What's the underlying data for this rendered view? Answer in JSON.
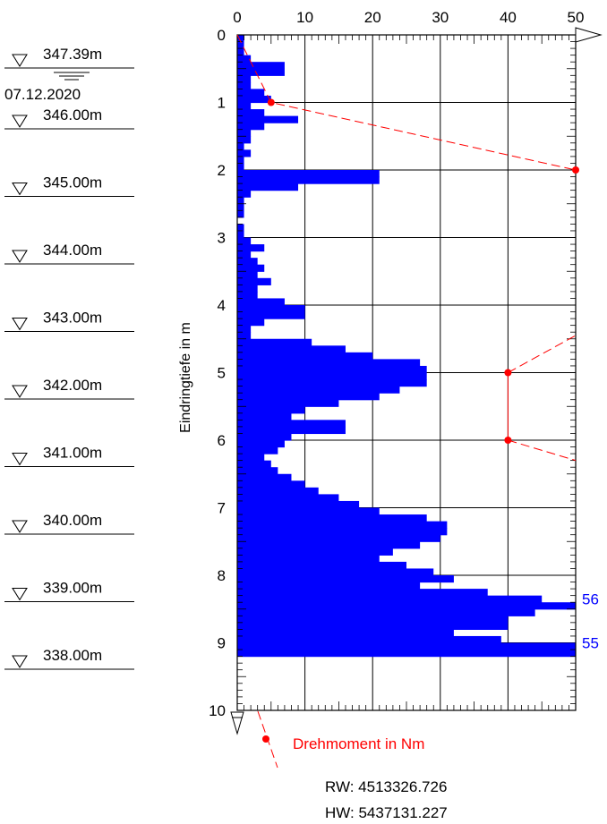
{
  "chart_data": {
    "type": "bar",
    "orientation": "horizontal",
    "xlabel": "",
    "ylabel": "Eindringtiefe in m",
    "xlim": [
      0,
      50
    ],
    "ylim": [
      10,
      0
    ],
    "x_ticks": [
      "0",
      "10",
      "20",
      "30",
      "40",
      "50"
    ],
    "y_ticks": [
      "0",
      "1",
      "2",
      "3",
      "4",
      "5",
      "6",
      "7",
      "8",
      "9",
      "10"
    ],
    "grid": true,
    "bar_color": "#0000ff",
    "bar_step_m": 0.1,
    "bars": [
      {
        "depth": 0.0,
        "value": 1
      },
      {
        "depth": 0.1,
        "value": 1
      },
      {
        "depth": 0.2,
        "value": 1
      },
      {
        "depth": 0.3,
        "value": 2
      },
      {
        "depth": 0.4,
        "value": 7
      },
      {
        "depth": 0.5,
        "value": 7
      },
      {
        "depth": 0.6,
        "value": 2
      },
      {
        "depth": 0.7,
        "value": 2
      },
      {
        "depth": 0.8,
        "value": 4
      },
      {
        "depth": 0.9,
        "value": 5
      },
      {
        "depth": 1.0,
        "value": 2
      },
      {
        "depth": 1.1,
        "value": 4
      },
      {
        "depth": 1.2,
        "value": 9
      },
      {
        "depth": 1.3,
        "value": 4
      },
      {
        "depth": 1.4,
        "value": 2
      },
      {
        "depth": 1.5,
        "value": 2
      },
      {
        "depth": 1.6,
        "value": 1
      },
      {
        "depth": 1.7,
        "value": 2
      },
      {
        "depth": 1.8,
        "value": 1
      },
      {
        "depth": 1.9,
        "value": 1
      },
      {
        "depth": 2.0,
        "value": 21
      },
      {
        "depth": 2.1,
        "value": 21
      },
      {
        "depth": 2.2,
        "value": 9
      },
      {
        "depth": 2.3,
        "value": 2
      },
      {
        "depth": 2.4,
        "value": 1
      },
      {
        "depth": 2.5,
        "value": 1
      },
      {
        "depth": 2.6,
        "value": 1
      },
      {
        "depth": 2.7,
        "value": 0
      },
      {
        "depth": 2.8,
        "value": 1
      },
      {
        "depth": 2.9,
        "value": 1
      },
      {
        "depth": 3.0,
        "value": 2
      },
      {
        "depth": 3.1,
        "value": 4
      },
      {
        "depth": 3.2,
        "value": 2
      },
      {
        "depth": 3.3,
        "value": 3
      },
      {
        "depth": 3.4,
        "value": 4
      },
      {
        "depth": 3.5,
        "value": 3
      },
      {
        "depth": 3.6,
        "value": 5
      },
      {
        "depth": 3.7,
        "value": 3
      },
      {
        "depth": 3.8,
        "value": 3
      },
      {
        "depth": 3.9,
        "value": 7
      },
      {
        "depth": 4.0,
        "value": 10
      },
      {
        "depth": 4.1,
        "value": 10
      },
      {
        "depth": 4.2,
        "value": 4
      },
      {
        "depth": 4.3,
        "value": 2
      },
      {
        "depth": 4.4,
        "value": 2
      },
      {
        "depth": 4.5,
        "value": 11
      },
      {
        "depth": 4.6,
        "value": 16
      },
      {
        "depth": 4.7,
        "value": 20
      },
      {
        "depth": 4.8,
        "value": 27
      },
      {
        "depth": 4.9,
        "value": 28
      },
      {
        "depth": 5.0,
        "value": 28
      },
      {
        "depth": 5.1,
        "value": 28
      },
      {
        "depth": 5.2,
        "value": 24
      },
      {
        "depth": 5.3,
        "value": 21
      },
      {
        "depth": 5.4,
        "value": 15
      },
      {
        "depth": 5.5,
        "value": 10
      },
      {
        "depth": 5.6,
        "value": 8
      },
      {
        "depth": 5.7,
        "value": 16
      },
      {
        "depth": 5.8,
        "value": 16
      },
      {
        "depth": 5.9,
        "value": 8
      },
      {
        "depth": 6.0,
        "value": 7
      },
      {
        "depth": 6.1,
        "value": 6
      },
      {
        "depth": 6.2,
        "value": 4
      },
      {
        "depth": 6.3,
        "value": 5
      },
      {
        "depth": 6.4,
        "value": 6
      },
      {
        "depth": 6.5,
        "value": 8
      },
      {
        "depth": 6.6,
        "value": 10
      },
      {
        "depth": 6.7,
        "value": 12
      },
      {
        "depth": 6.8,
        "value": 15
      },
      {
        "depth": 6.9,
        "value": 18
      },
      {
        "depth": 7.0,
        "value": 21
      },
      {
        "depth": 7.1,
        "value": 28
      },
      {
        "depth": 7.2,
        "value": 31
      },
      {
        "depth": 7.3,
        "value": 31
      },
      {
        "depth": 7.4,
        "value": 30
      },
      {
        "depth": 7.5,
        "value": 27
      },
      {
        "depth": 7.6,
        "value": 23
      },
      {
        "depth": 7.7,
        "value": 21
      },
      {
        "depth": 7.8,
        "value": 25
      },
      {
        "depth": 7.9,
        "value": 29
      },
      {
        "depth": 8.0,
        "value": 32
      },
      {
        "depth": 8.1,
        "value": 27
      },
      {
        "depth": 8.2,
        "value": 37
      },
      {
        "depth": 8.3,
        "value": 45
      },
      {
        "depth": 8.4,
        "value": 50
      },
      {
        "depth": 8.5,
        "value": 44
      },
      {
        "depth": 8.6,
        "value": 40
      },
      {
        "depth": 8.7,
        "value": 40
      },
      {
        "depth": 8.8,
        "value": 32
      },
      {
        "depth": 8.9,
        "value": 39
      },
      {
        "depth": 9.0,
        "value": 50
      },
      {
        "depth": 9.1,
        "value": 50
      }
    ],
    "overflow_labels": [
      {
        "depth": 8.35,
        "text": "56"
      },
      {
        "depth": 9.0,
        "text": "55"
      }
    ],
    "torque_series": {
      "name": "Drehmoment in Nm",
      "color": "#ff0000",
      "segments": [
        {
          "dashed": true,
          "points": [
            [
              0,
              0
            ],
            [
              5,
              1
            ],
            [
              50,
              2
            ]
          ]
        },
        {
          "dashed": true,
          "points": [
            [
              40,
              5
            ],
            [
              50,
              4.45
            ]
          ]
        },
        {
          "dashed": false,
          "points": [
            [
              40,
              5
            ],
            [
              40,
              6
            ]
          ]
        },
        {
          "dashed": true,
          "points": [
            [
              40,
              6
            ],
            [
              50,
              6.3
            ]
          ]
        }
      ],
      "markers": [
        [
          5,
          1
        ],
        [
          50,
          2
        ],
        [
          40,
          5
        ],
        [
          40,
          6
        ]
      ]
    },
    "legend": {
      "label": "Drehmoment in Nm",
      "placement": "bottom"
    },
    "elevation_scale": {
      "top_label": "347.39m",
      "date": "07.12.2020",
      "levels": [
        {
          "depth": 1.39,
          "label": "346.00m"
        },
        {
          "depth": 2.39,
          "label": "345.00m"
        },
        {
          "depth": 3.39,
          "label": "344.00m"
        },
        {
          "depth": 4.39,
          "label": "343.00m"
        },
        {
          "depth": 5.39,
          "label": "342.00m"
        },
        {
          "depth": 6.39,
          "label": "341.00m"
        },
        {
          "depth": 7.39,
          "label": "340.00m"
        },
        {
          "depth": 8.39,
          "label": "339.00m"
        },
        {
          "depth": 9.39,
          "label": "338.00m"
        }
      ]
    },
    "coordinates": {
      "rw": "RW: 4513326.726",
      "hw": "HW: 5437131.227"
    }
  }
}
